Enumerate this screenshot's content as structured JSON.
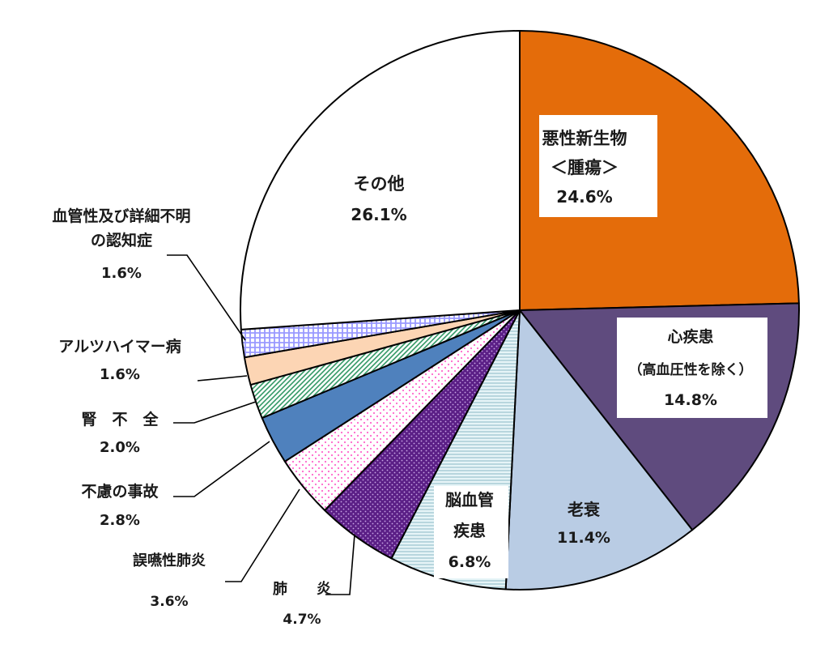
{
  "chart_data": {
    "type": "pie",
    "title": "",
    "categories": [
      "悪性新生物＜腫瘍＞",
      "心疾患（高血圧性を除く）",
      "老衰",
      "脳血管疾患",
      "肺炎",
      "誤嚥性肺炎",
      "不慮の事故",
      "腎不全",
      "アルツハイマー病",
      "血管性及び詳細不明の認知症",
      "その他"
    ],
    "values": [
      24.6,
      14.8,
      11.4,
      6.8,
      4.7,
      3.6,
      2.8,
      2.0,
      1.6,
      1.6,
      26.1
    ],
    "value_labels": [
      "24.6%",
      "14.8%",
      "11.4%",
      "6.8%",
      "4.7%",
      "3.6%",
      "2.8%",
      "2.0%",
      "1.6%",
      "1.6%",
      "26.1%"
    ],
    "label_lines": [
      [
        "悪性新生物",
        "＜腫瘍＞"
      ],
      [
        "心疾患",
        "（高血圧性を除く）"
      ],
      [
        "老衰"
      ],
      [
        "脳血管",
        "疾患"
      ],
      [
        "肺　　炎"
      ],
      [
        "誤嚥性肺炎"
      ],
      [
        "不慮の事故"
      ],
      [
        "腎　不　全"
      ],
      [
        "アルツハイマー病"
      ],
      [
        "血管性及び詳細不明",
        "の認知症"
      ],
      [
        "その他"
      ]
    ],
    "colors": [
      "#e46c0a",
      "#5f4b7e",
      "#b9cce4",
      "#dbeef3",
      "#7030a0",
      "#ff66cc",
      "#4f81bd",
      "#339966",
      "#fcd5b4",
      "#9999ff",
      "#ffffff"
    ],
    "fill_patterns": [
      "solid",
      "solid",
      "solid",
      "hlines",
      "dots-dense",
      "dots-sparse",
      "solid",
      "diagonal",
      "solid",
      "grid",
      "solid"
    ],
    "start_angle": "12 o'clock",
    "direction": "clockwise",
    "legend": "none"
  }
}
